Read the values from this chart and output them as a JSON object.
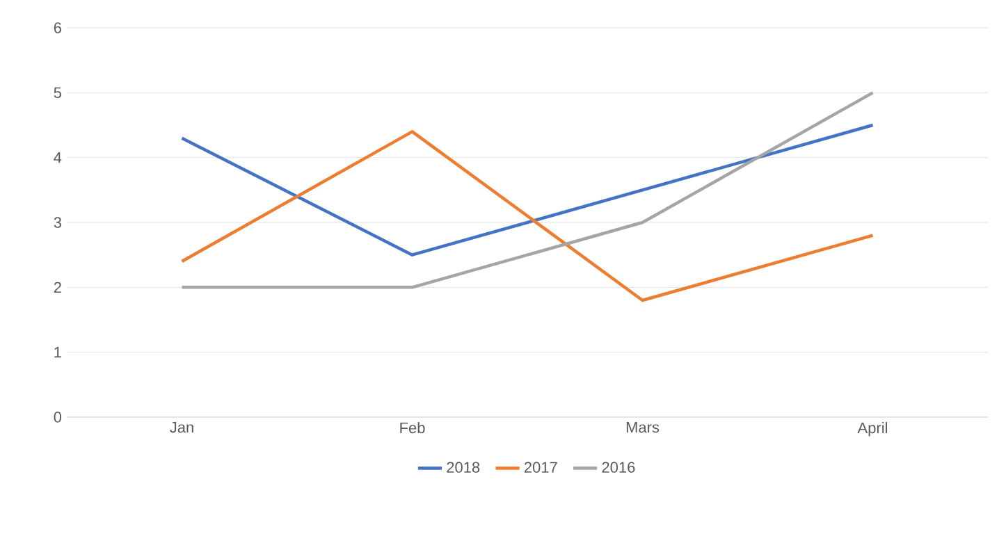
{
  "chart_data": {
    "type": "line",
    "categories": [
      "Jan",
      "Feb",
      "Mars",
      "April"
    ],
    "series": [
      {
        "name": "2018",
        "color": "#4472c4",
        "values": [
          4.3,
          2.5,
          3.5,
          4.5
        ]
      },
      {
        "name": "2017",
        "color": "#ed7d31",
        "values": [
          2.4,
          4.4,
          1.8,
          2.8
        ]
      },
      {
        "name": "2016",
        "color": "#a5a5a5",
        "values": [
          2,
          2,
          3,
          5
        ]
      }
    ],
    "ylim": [
      0,
      6
    ],
    "yticks": [
      0,
      1,
      2,
      3,
      4,
      5,
      6
    ],
    "grid": "y",
    "legend": "bottom"
  }
}
